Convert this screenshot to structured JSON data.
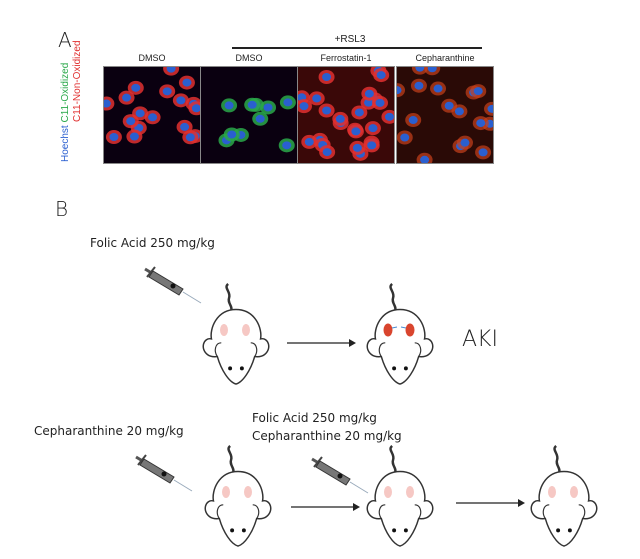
{
  "panel_a": {
    "letter": "A",
    "treatment_header": "+RSL3",
    "columns": [
      "DMSO",
      "DMSO",
      "Ferrostatin-1",
      "Cepharanthine"
    ],
    "stain_labels": {
      "hoechst": "Hoechst",
      "oxidized": "C11-Oxidized",
      "non_oxidized": "C11-Non-Oxidized"
    },
    "colors": {
      "hoechst": "#2a5fd0",
      "oxidized": "#2aa84a",
      "non_oxidized": "#e03030"
    }
  },
  "panel_b": {
    "letter": "B",
    "row1": {
      "dose_label": "Folic Acid 250 mg/kg",
      "outcome_label": "AKI"
    },
    "row2": {
      "pretreatment_label": "Cepharanthine 20 mg/kg",
      "dose_label_1": "Folic Acid 250 mg/kg",
      "dose_label_2": "Cepharanthine 20 mg/kg"
    }
  }
}
